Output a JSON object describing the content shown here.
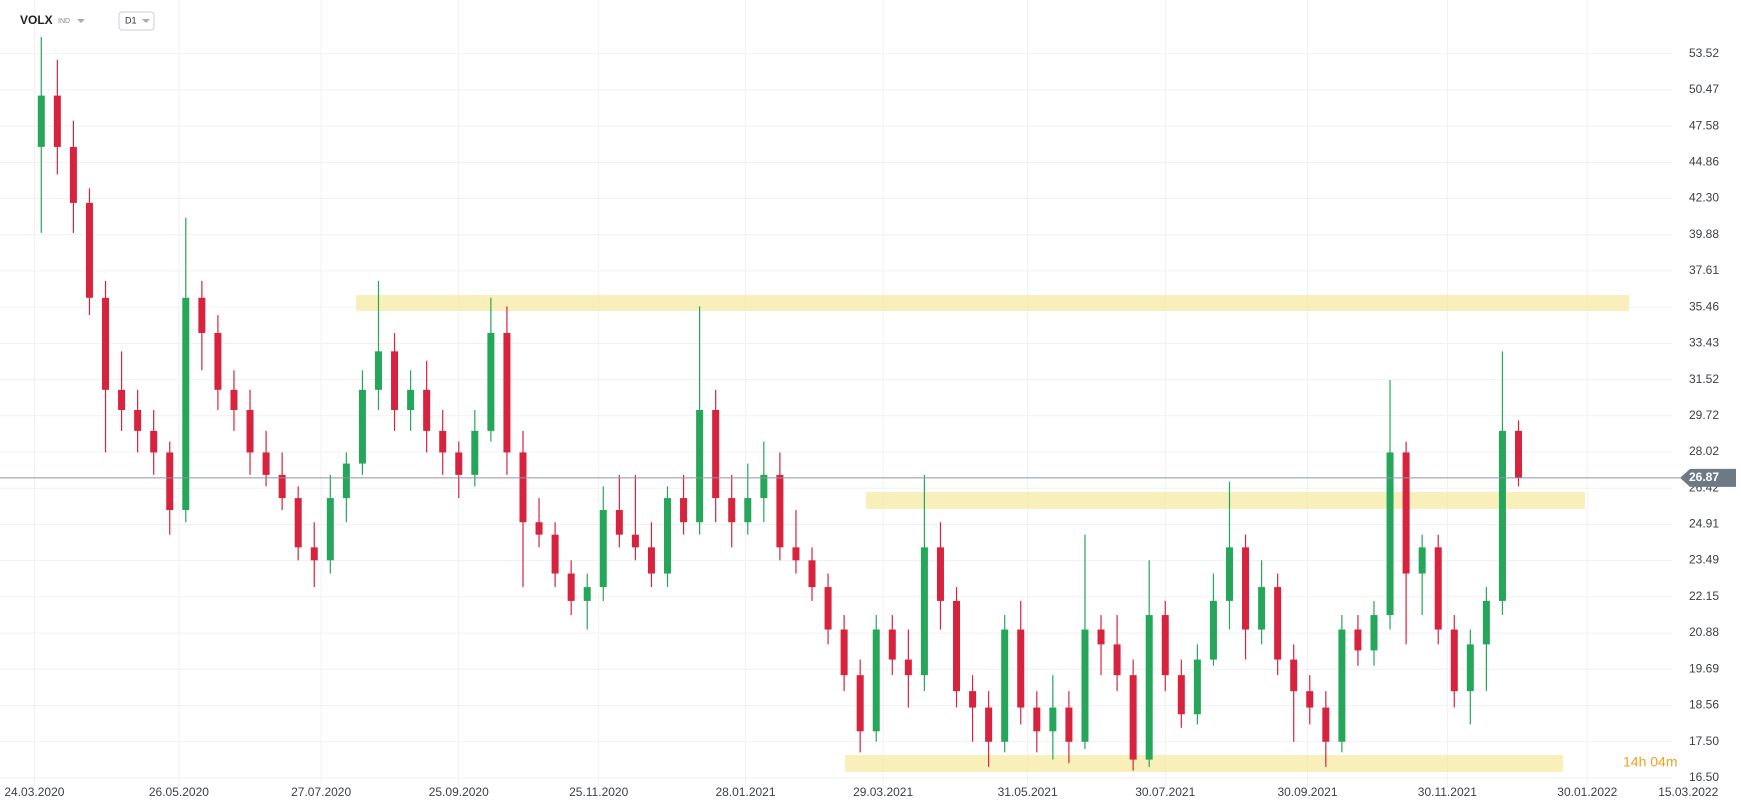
{
  "header": {
    "symbol": "VOLX",
    "exchange": "IND",
    "timeframe": "D1"
  },
  "countdown": "14h 04m",
  "chart_data": {
    "type": "candlestick",
    "log_scale": true,
    "grid": true,
    "up_color": "#26a65b",
    "down_color": "#d8233e",
    "last_price": 26.87,
    "ylim": [
      16.26,
      58.4
    ],
    "yticks": [
      53.52,
      50.47,
      47.58,
      44.86,
      {
        "value": 42.3,
        "label": "42.30"
      },
      39.88,
      37.61,
      35.46,
      33.43,
      31.52,
      29.72,
      28.02,
      26.42,
      24.91,
      23.49,
      22.15,
      20.88,
      19.69,
      18.56,
      {
        "value": 17.5,
        "label": "17.50"
      },
      {
        "value": 16.5,
        "label": "16.50"
      }
    ],
    "xlim": [
      "2020-03-09",
      "2022-04-07"
    ],
    "xticks": [
      {
        "value": "2020-03-24",
        "label": "24.03.2020"
      },
      {
        "value": "2020-05-26",
        "label": "26.05.2020"
      },
      {
        "value": "2020-07-27",
        "label": "27.07.2020"
      },
      {
        "value": "2020-09-25",
        "label": "25.09.2020"
      },
      {
        "value": "2020-11-25",
        "label": "25.11.2020"
      },
      {
        "value": "2021-01-28",
        "label": "28.01.2021"
      },
      {
        "value": "2021-03-29",
        "label": "29.03.2021"
      },
      {
        "value": "2021-05-31",
        "label": "31.05.2021"
      },
      {
        "value": "2021-07-30",
        "label": "30.07.2021"
      },
      {
        "value": "2021-09-30",
        "label": "30.09.2021"
      },
      {
        "value": "2021-11-30",
        "label": "30.11.2021"
      },
      {
        "value": "2022-01-30",
        "label": "30.01.2022"
      },
      {
        "value": "2022-03-15",
        "label": "15.03.2022"
      }
    ],
    "x": [
      "2020-03-27",
      "2020-04-03",
      "2020-04-10",
      "2020-04-17",
      "2020-04-24",
      "2020-05-01",
      "2020-05-08",
      "2020-05-15",
      "2020-05-22",
      "2020-05-29",
      "2020-06-05",
      "2020-06-12",
      "2020-06-19",
      "2020-06-26",
      "2020-07-03",
      "2020-07-10",
      "2020-07-17",
      "2020-07-24",
      "2020-07-31",
      "2020-08-07",
      "2020-08-14",
      "2020-08-21",
      "2020-08-28",
      "2020-09-04",
      "2020-09-11",
      "2020-09-18",
      "2020-09-25",
      "2020-10-02",
      "2020-10-09",
      "2020-10-16",
      "2020-10-23",
      "2020-10-30",
      "2020-11-06",
      "2020-11-13",
      "2020-11-20",
      "2020-11-27",
      "2020-12-04",
      "2020-12-11",
      "2020-12-18",
      "2020-12-25",
      "2021-01-01",
      "2021-01-08",
      "2021-01-15",
      "2021-01-22",
      "2021-01-29",
      "2021-02-05",
      "2021-02-12",
      "2021-02-19",
      "2021-02-26",
      "2021-03-05",
      "2021-03-12",
      "2021-03-19",
      "2021-03-26",
      "2021-04-02",
      "2021-04-09",
      "2021-04-16",
      "2021-04-23",
      "2021-04-30",
      "2021-05-07",
      "2021-05-14",
      "2021-05-21",
      "2021-05-28",
      "2021-06-04",
      "2021-06-11",
      "2021-06-18",
      "2021-06-25",
      "2021-07-02",
      "2021-07-09",
      "2021-07-16",
      "2021-07-23",
      "2021-07-30",
      "2021-08-06",
      "2021-08-13",
      "2021-08-20",
      "2021-08-27",
      "2021-09-03",
      "2021-09-10",
      "2021-09-17",
      "2021-09-24",
      "2021-10-01",
      "2021-10-08",
      "2021-10-15",
      "2021-10-22",
      "2021-10-29",
      "2021-11-05",
      "2021-11-12",
      "2021-11-19",
      "2021-11-26",
      "2021-12-03",
      "2021-12-10",
      "2021-12-17",
      "2021-12-24",
      "2021-12-31"
    ],
    "open": [
      46,
      50,
      46,
      42,
      36,
      31,
      30,
      29,
      28,
      25.5,
      36,
      34,
      31,
      30,
      28,
      27,
      26,
      24,
      23.5,
      26,
      27.5,
      31,
      33,
      30,
      31,
      29,
      28,
      27,
      29,
      34,
      28,
      25,
      24.5,
      23,
      22,
      22.5,
      25.5,
      24.5,
      24,
      23,
      26,
      25,
      30,
      26,
      25,
      26,
      27,
      24,
      23.5,
      22.5,
      21,
      19.5,
      17.8,
      21,
      20,
      19.5,
      24,
      22,
      19,
      18.5,
      17.5,
      21,
      18.5,
      17.8,
      18.5,
      17.5,
      21,
      20.5,
      19.5,
      17,
      21.5,
      19.5,
      18.3,
      20,
      22,
      24,
      21,
      22.5,
      20,
      19,
      18.5,
      17.5,
      21,
      20.3,
      21.5,
      28,
      23,
      24,
      21,
      19,
      20.5,
      22,
      29
    ],
    "high": [
      55,
      53,
      48,
      43,
      37,
      33,
      31,
      30,
      28.5,
      41,
      37,
      35,
      32,
      31,
      29,
      28,
      26.5,
      25,
      27,
      28,
      32,
      37,
      34,
      32,
      32.5,
      30,
      28.5,
      30,
      36,
      35.5,
      29,
      26,
      25,
      23.5,
      23,
      26.5,
      27,
      27,
      25,
      26.5,
      27,
      35.5,
      31,
      27,
      27.5,
      28.5,
      28,
      25.5,
      24,
      23,
      21.5,
      20,
      21.5,
      21.5,
      21,
      27,
      25,
      22.5,
      19.5,
      19,
      21.5,
      22,
      19,
      19.5,
      19,
      24.5,
      21.5,
      21.5,
      20,
      23.5,
      22,
      20,
      20.5,
      23,
      26.7,
      24.5,
      23.5,
      23,
      20.5,
      19.5,
      19,
      21.5,
      21.5,
      22,
      31.5,
      28.5,
      24.5,
      24.5,
      21.5,
      21,
      22.5,
      33,
      29.5
    ],
    "low": [
      40,
      44,
      40,
      35,
      28,
      29,
      28,
      27,
      24.5,
      25,
      32,
      30,
      29,
      27,
      26.5,
      25.5,
      23.5,
      22.5,
      23,
      25,
      27,
      30,
      29,
      29,
      28,
      27,
      26,
      26.5,
      28.5,
      27,
      22.5,
      24,
      22.5,
      21.5,
      21,
      22,
      24,
      23.5,
      22.5,
      22.5,
      24.5,
      24.5,
      25,
      24,
      24.5,
      25,
      23.5,
      23,
      22,
      20.5,
      19,
      17.2,
      17.5,
      19.5,
      18.5,
      19,
      21,
      18.5,
      17.5,
      16.8,
      17.2,
      18,
      17.2,
      17,
      16.9,
      17.3,
      19.5,
      19,
      16.7,
      16.8,
      19,
      17.9,
      18,
      19.8,
      21,
      20,
      20.5,
      19.5,
      17.5,
      18,
      16.8,
      17.2,
      19.8,
      19.8,
      21,
      20.5,
      21.5,
      20.5,
      18.5,
      18,
      19,
      21.5,
      26.5
    ],
    "close": [
      50,
      46,
      42,
      36,
      31,
      30,
      29,
      28,
      25.5,
      36,
      34,
      31,
      30,
      28,
      27,
      26,
      24,
      23.5,
      26,
      27.5,
      31,
      33,
      30,
      31,
      29,
      28,
      27,
      29,
      34,
      28,
      25,
      24.5,
      23,
      22,
      22.5,
      25.5,
      24.5,
      24,
      23,
      26,
      25,
      30,
      26,
      25,
      26,
      27,
      24,
      23.5,
      22.5,
      21,
      19.5,
      17.8,
      21,
      20,
      19.5,
      24,
      22,
      19,
      18.5,
      17.5,
      21,
      18.5,
      17.8,
      18.5,
      17.5,
      21,
      20.5,
      19.5,
      17,
      21.5,
      19.5,
      18.3,
      20,
      22,
      24,
      21,
      22.5,
      20,
      19,
      18.5,
      17.5,
      21,
      20.3,
      21.5,
      28,
      23,
      24,
      21,
      19,
      20.5,
      22,
      29,
      26.87
    ]
  }
}
